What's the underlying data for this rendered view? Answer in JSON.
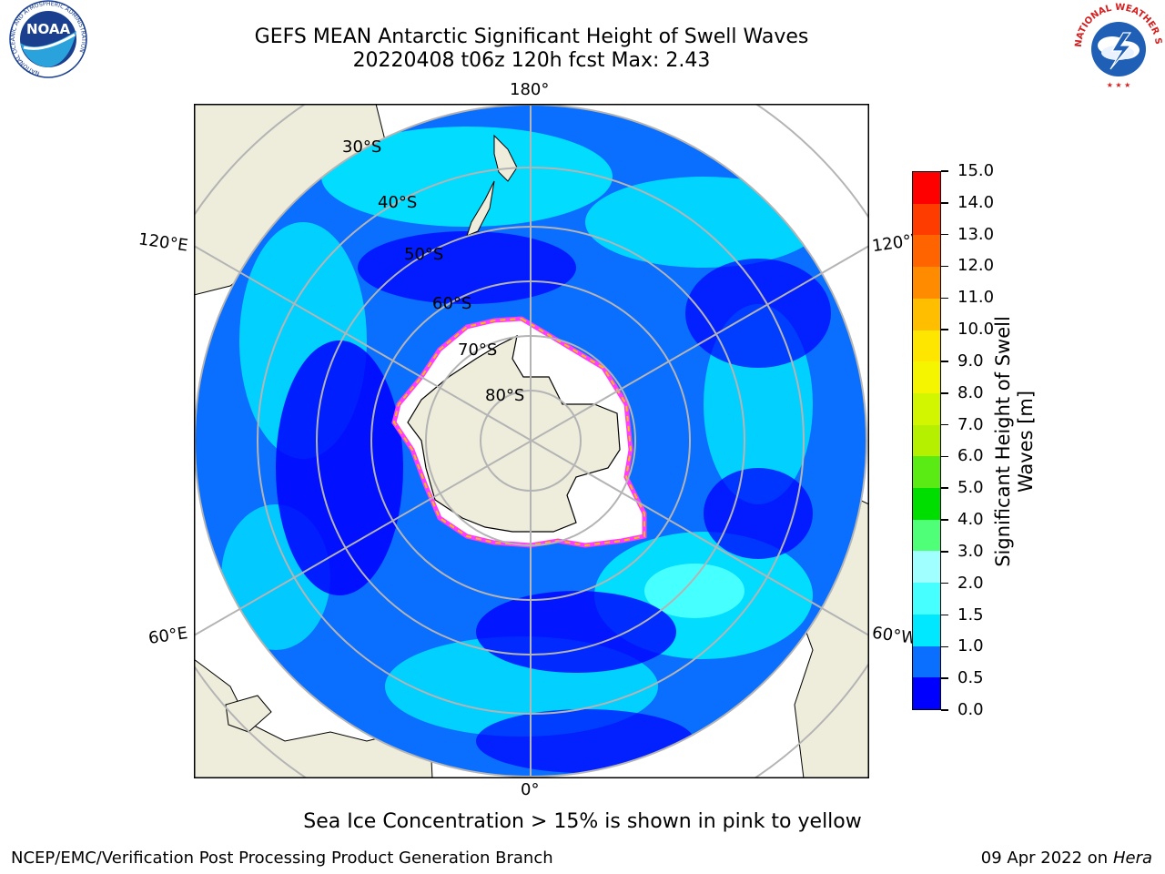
{
  "title": {
    "line1": "GEFS MEAN Antarctic Significant Height of Swell Waves",
    "line2": "20220408 t06z 120h fcst   Max: 2.43"
  },
  "logos": {
    "left": {
      "name": "NOAA",
      "ring_text": "NATIONAL OCEANIC AND ATMOSPHERIC ADMINISTRATION",
      "bottom_text": "U.S. DEPARTMENT OF COMMERCE"
    },
    "right": {
      "ring_text": "NATIONAL WEATHER SERVICE"
    }
  },
  "map": {
    "projection": "south polar stereographic",
    "lon_labels": {
      "top": "180°",
      "bottom": "0°",
      "upper_left": "120°E",
      "lower_left": "60°E",
      "upper_right": "120°W",
      "lower_right": "60°W"
    },
    "lat_labels": [
      "30°S",
      "40°S",
      "50°S",
      "60°S",
      "70°S",
      "80°S"
    ],
    "colors": {
      "land": "#eeecdb",
      "grid": "#b4b4b4",
      "ice_fill": "#ffffff",
      "ice_edge": "#ff3cff"
    }
  },
  "colorbar": {
    "label": "Significant Height of Swell\nWaves [m]",
    "ticks": [
      "0.0",
      "0.5",
      "1.0",
      "1.5",
      "2.0",
      "3.0",
      "4.0",
      "5.0",
      "6.0",
      "7.0",
      "8.0",
      "9.0",
      "10.0",
      "11.0",
      "12.0",
      "13.0",
      "14.0",
      "15.0"
    ],
    "colors": [
      "#0000ff",
      "#0a6eff",
      "#00e8ff",
      "#46ffff",
      "#a0ffff",
      "#50ff78",
      "#00de00",
      "#5aea14",
      "#b4f000",
      "#d2f500",
      "#f5f500",
      "#ffe600",
      "#ffbe00",
      "#ff8c00",
      "#ff6400",
      "#ff3c00",
      "#ff0000"
    ]
  },
  "caption": "Sea Ice Concentration > 15% is shown in pink to yellow",
  "footer": {
    "left": "NCEP/EMC/Verification Post Processing Product Generation Branch",
    "right_prefix": "09 Apr 2022 on ",
    "right_host": "Hera"
  }
}
